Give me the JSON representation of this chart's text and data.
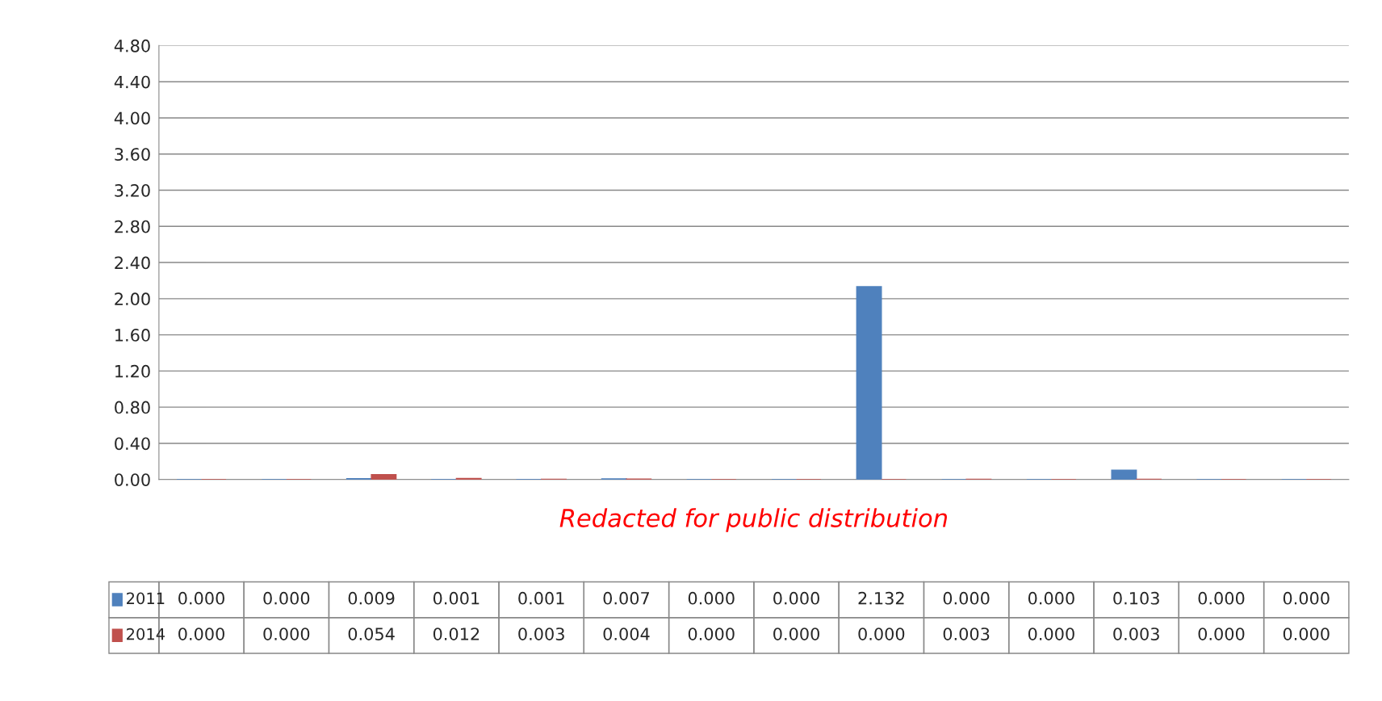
{
  "chart_data": {
    "type": "bar",
    "categories": [
      null,
      null,
      null,
      null,
      null,
      null,
      null,
      null,
      null,
      null,
      null,
      null,
      null,
      null
    ],
    "series": [
      {
        "name": "2011",
        "color": "#4f81bd",
        "values": [
          0.0,
          0.0,
          0.009,
          0.001,
          0.001,
          0.007,
          0.0,
          0.0,
          2.132,
          0.0,
          0.0,
          0.103,
          0.0,
          0.0
        ],
        "value_labels": [
          "0.000",
          "0.000",
          "0.009",
          "0.001",
          "0.001",
          "0.007",
          "0.000",
          "0.000",
          "2.132",
          "0.000",
          "0.000",
          "0.103",
          "0.000",
          "0.000"
        ]
      },
      {
        "name": "2014",
        "color": "#c0504d",
        "values": [
          0.0,
          0.0,
          0.054,
          0.012,
          0.003,
          0.004,
          0.0,
          0.0,
          0.0,
          0.003,
          0.0,
          0.003,
          0.0,
          0.0
        ],
        "value_labels": [
          "0.000",
          "0.000",
          "0.054",
          "0.012",
          "0.003",
          "0.004",
          "0.000",
          "0.000",
          "0.000",
          "0.003",
          "0.000",
          "0.003",
          "0.000",
          "0.000"
        ]
      }
    ],
    "ylim": [
      0,
      4.8
    ],
    "yticks": [
      {
        "value": 0,
        "label": "0.00"
      },
      {
        "value": 0.4,
        "label": "0.40"
      },
      {
        "value": 0.8,
        "label": "0.80"
      },
      {
        "value": 1.2,
        "label": "1.20"
      },
      {
        "value": 1.6,
        "label": "1.60"
      },
      {
        "value": 2.0,
        "label": "2.00"
      },
      {
        "value": 2.4,
        "label": "2.40"
      },
      {
        "value": 2.8,
        "label": "2.80"
      },
      {
        "value": 3.2,
        "label": "3.20"
      },
      {
        "value": 3.6,
        "label": "3.60"
      },
      {
        "value": 4.0,
        "label": "4.00"
      },
      {
        "value": 4.4,
        "label": "4.40"
      },
      {
        "value": 4.8,
        "label": "4.80"
      }
    ],
    "grid": "y",
    "legend": "bottom",
    "annotations": [
      "Redacted for public distribution"
    ]
  }
}
